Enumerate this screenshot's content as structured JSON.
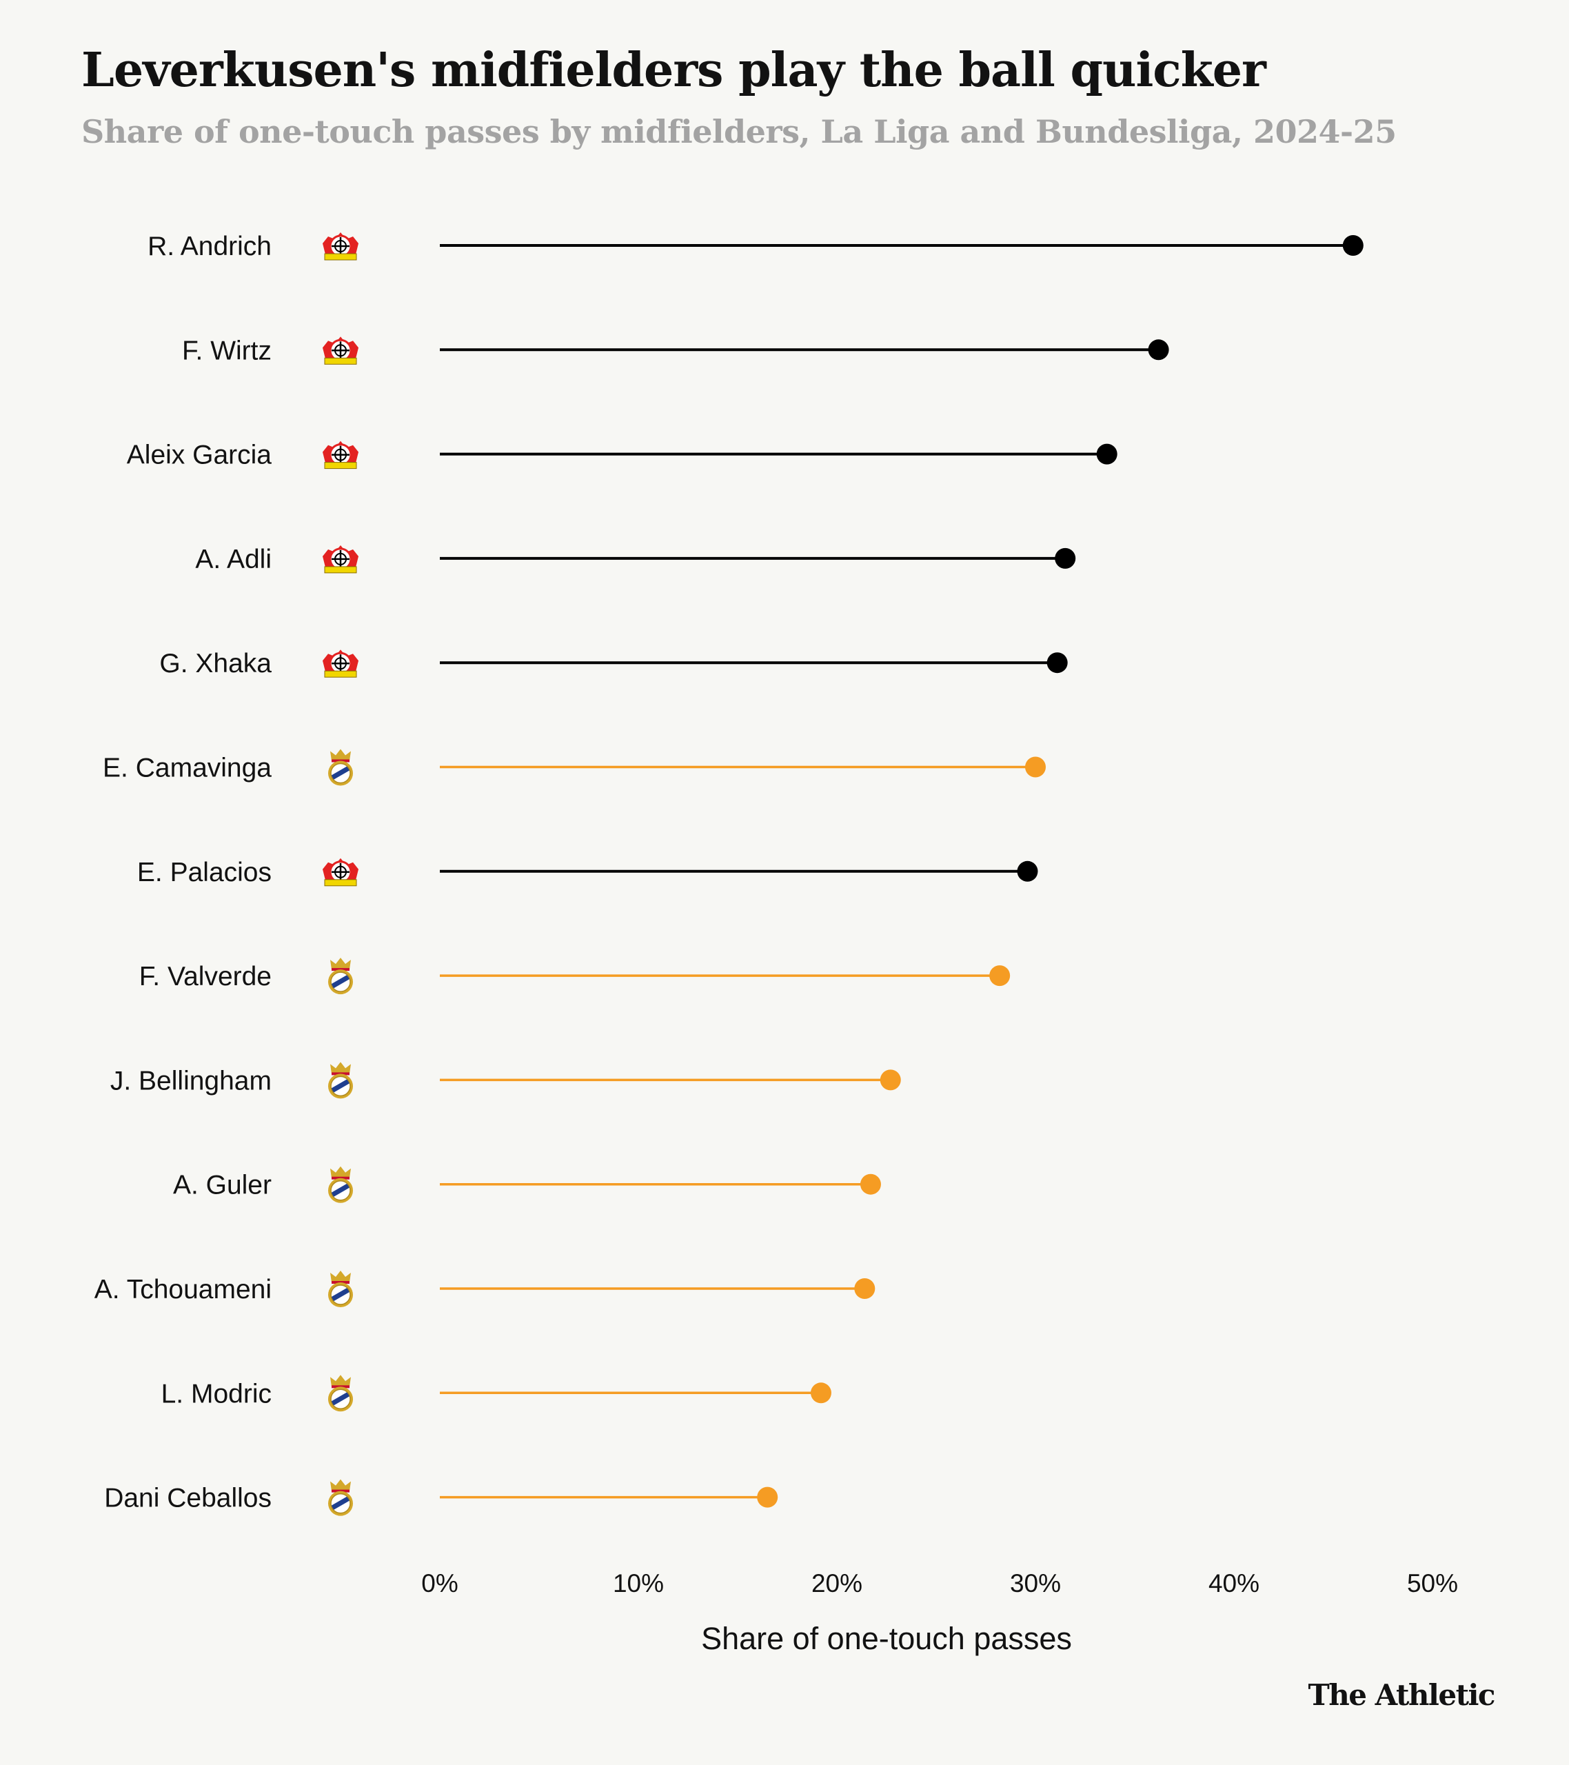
{
  "header": {
    "title": "Leverkusen's midfielders play the ball quicker",
    "subtitle": "Share of one-touch passes by midfielders, La Liga and Bundesliga, 2024-25"
  },
  "brand": "The Athletic",
  "colors": {
    "background": "#f7f7f4",
    "leverkusen": "#000000",
    "real_madrid": "#f59c23",
    "leverkusen_crest_red": "#e32221",
    "leverkusen_crest_yellow": "#f1d600",
    "real_madrid_crest_gold": "#d4a82a",
    "real_madrid_crest_blue": "#1f3f8f"
  },
  "icons": {
    "leverkusen": "leverkusen-crest-icon",
    "real_madrid": "real-madrid-crest-icon"
  },
  "chart_data": {
    "type": "lollipop",
    "title": "Leverkusen's midfielders play the ball quicker",
    "subtitle": "Share of one-touch passes by midfielders, La Liga and Bundesliga, 2024-25",
    "xlabel": "Share of one-touch passes",
    "ylabel": "",
    "xlim": [
      0,
      50
    ],
    "xticks": [
      0,
      10,
      20,
      30,
      40,
      50
    ],
    "xtick_labels": [
      "0%",
      "10%",
      "20%",
      "30%",
      "40%",
      "50%"
    ],
    "grid": false,
    "categories": [
      "R. Andrich",
      "F. Wirtz",
      "Aleix Garcia",
      "A. Adli",
      "G. Xhaka",
      "E. Camavinga",
      "E. Palacios",
      "F. Valverde",
      "J. Bellingham",
      "A. Guler",
      "A. Tchouameni",
      "L. Modric",
      "Dani Ceballos"
    ],
    "values": [
      46.0,
      36.2,
      33.6,
      31.5,
      31.1,
      30.0,
      29.6,
      28.2,
      22.7,
      21.7,
      21.4,
      19.2,
      16.5
    ],
    "teams": [
      "leverkusen",
      "leverkusen",
      "leverkusen",
      "leverkusen",
      "leverkusen",
      "real_madrid",
      "leverkusen",
      "real_madrid",
      "real_madrid",
      "real_madrid",
      "real_madrid",
      "real_madrid",
      "real_madrid"
    ]
  }
}
